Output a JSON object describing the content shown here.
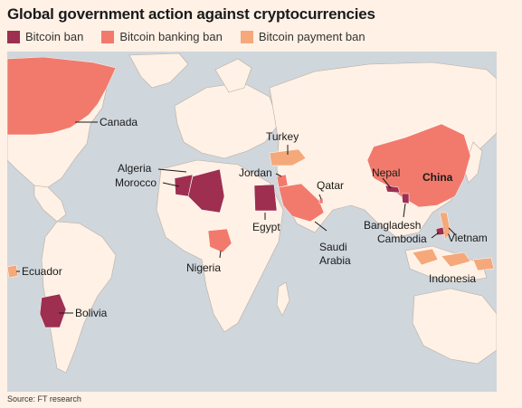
{
  "header": {
    "title": "Global government action against cryptocurrencies"
  },
  "legend": [
    {
      "label": "Bitcoin ban",
      "color": "#9e2f50"
    },
    {
      "label": "Bitcoin banking ban",
      "color": "#f27a6c"
    },
    {
      "label": "Bitcoin payment ban",
      "color": "#f5a97a"
    }
  ],
  "map": {
    "water_color": "#cfd6dc",
    "land_color": "#fff1e5",
    "labels": {
      "canada": "Canada",
      "turkey": "Turkey",
      "algeria": "Algeria",
      "morocco": "Morocco",
      "jordan": "Jordan",
      "qatar": "Qatar",
      "nepal": "Nepal",
      "china": "China",
      "egypt": "Egypt",
      "bangladesh": "Bangladesh",
      "cambodia": "Cambodia",
      "vietnam": "Vietnam",
      "saudi_1": "Saudi",
      "saudi_2": "Arabia",
      "nigeria": "Nigeria",
      "ecuador": "Ecuador",
      "indonesia": "Indonesia",
      "bolivia": "Bolivia"
    }
  },
  "footer": {
    "source": "Source: FT research"
  }
}
